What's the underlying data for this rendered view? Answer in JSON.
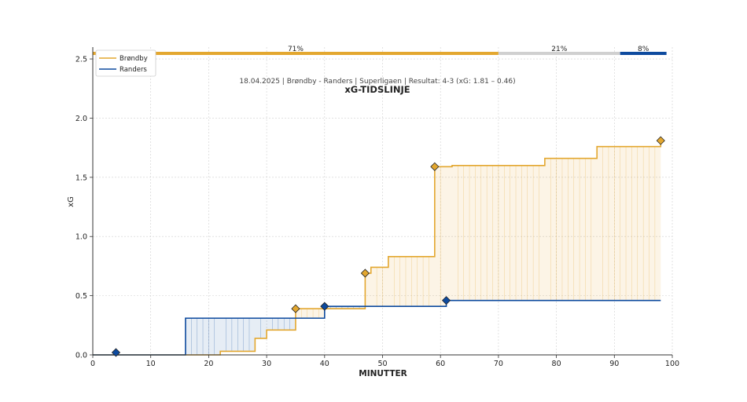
{
  "chart_data": {
    "type": "line",
    "title": "xG-TIDSLINJE",
    "subtitle": "18.04.2025 | Brøndby - Randers | Superligaen | Resultat: 4-3 (xG: 1.81 – 0.46)",
    "xlabel": "MINUTTER",
    "ylabel": "xG",
    "xlim": [
      0,
      100
    ],
    "ylim": [
      0,
      2.6
    ],
    "x_ticks": [
      0,
      10,
      20,
      30,
      40,
      50,
      60,
      70,
      80,
      90,
      100
    ],
    "y_ticks": [
      0.0,
      0.5,
      1.0,
      1.5,
      2.0,
      2.5
    ],
    "x_tick_labels": [
      "0",
      "10",
      "20",
      "30",
      "40",
      "50",
      "60",
      "70",
      "80",
      "90",
      "100"
    ],
    "y_tick_labels": [
      "0.0",
      "0.5",
      "1.0",
      "1.5",
      "2.0",
      "2.5"
    ],
    "grid": true,
    "legend_position": "top-left",
    "series": [
      {
        "name": "Brøndby",
        "color": "#E3A72F",
        "steps": [
          [
            0,
            0
          ],
          [
            22,
            0.03
          ],
          [
            28,
            0.14
          ],
          [
            30,
            0.21
          ],
          [
            35,
            0.39
          ],
          [
            47,
            0.69
          ],
          [
            48,
            0.74
          ],
          [
            51,
            0.83
          ],
          [
            59,
            1.59
          ],
          [
            62,
            1.6
          ],
          [
            78,
            1.66
          ],
          [
            87,
            1.76
          ],
          [
            98,
            1.81
          ]
        ],
        "goals": [
          [
            35,
            0.39
          ],
          [
            47,
            0.69
          ],
          [
            59,
            1.59
          ],
          [
            98,
            1.81
          ]
        ]
      },
      {
        "name": "Randers",
        "color": "#0D4A9E",
        "steps": [
          [
            0,
            0
          ],
          [
            16,
            0.31
          ],
          [
            40,
            0.41
          ],
          [
            61,
            0.46
          ],
          [
            98,
            0.46
          ]
        ],
        "goals": [
          [
            4,
            0.02
          ],
          [
            40,
            0.41
          ],
          [
            61,
            0.46
          ]
        ]
      }
    ],
    "possession_bar": {
      "segments": [
        {
          "label": "71%",
          "start": 0,
          "end": 70,
          "color": "#E3A72F"
        },
        {
          "label": "21%",
          "start": 70,
          "end": 91,
          "color": "#D0D0D0"
        },
        {
          "label": "8%",
          "start": 91,
          "end": 99,
          "color": "#0D4A9E"
        }
      ]
    }
  }
}
